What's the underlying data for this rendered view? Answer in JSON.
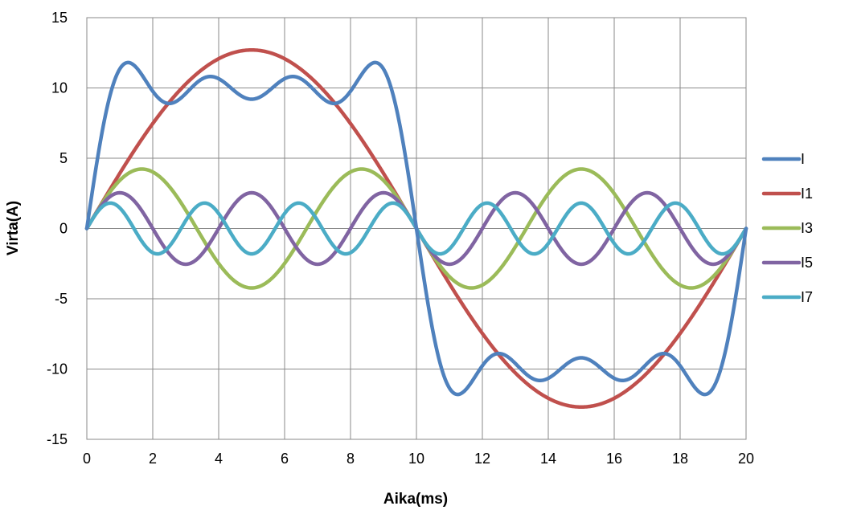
{
  "chart_data": {
    "type": "line",
    "title": "",
    "xlabel": "Aika(ms)",
    "ylabel": "Virta(A)",
    "xlim": [
      0,
      20
    ],
    "ylim": [
      -15,
      15
    ],
    "x_ticks": [
      0,
      2,
      4,
      6,
      8,
      10,
      12,
      14,
      16,
      18,
      20
    ],
    "y_ticks": [
      15,
      10,
      5,
      0,
      -5,
      -10,
      -15
    ],
    "x_tick_labels": [
      "0",
      "2",
      "4",
      "6",
      "8",
      "10",
      "12",
      "14",
      "16",
      "18",
      "20"
    ],
    "y_tick_labels": [
      "15",
      "10",
      "5",
      "0",
      "-5",
      "-10",
      "-15"
    ],
    "grid": true,
    "legend_position": "right",
    "period_ms": 20,
    "series": [
      {
        "name": "I",
        "color": "#4F81BD",
        "kind": "sum",
        "components": [
          "I1",
          "I3",
          "I5",
          "I7"
        ],
        "peak_approx": 11.8
      },
      {
        "name": "I1",
        "color": "#C0504D",
        "kind": "harmonic",
        "harmonic": 1,
        "amplitude": 12.7
      },
      {
        "name": "I3",
        "color": "#9BBB59",
        "kind": "harmonic",
        "harmonic": 3,
        "amplitude": 4.23
      },
      {
        "name": "I5",
        "color": "#8064A2",
        "kind": "harmonic",
        "harmonic": 5,
        "amplitude": 2.54
      },
      {
        "name": "I7",
        "color": "#4BACC6",
        "kind": "harmonic",
        "harmonic": 7,
        "amplitude": 1.81
      }
    ]
  }
}
